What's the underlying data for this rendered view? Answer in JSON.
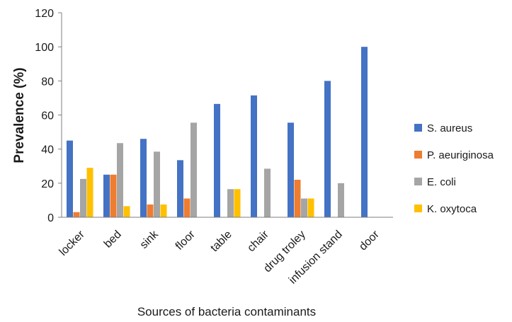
{
  "chart_data": {
    "type": "bar",
    "xlabel": "Sources of bacteria contaminants",
    "ylabel": "Prevalence (%)",
    "ylim": [
      0,
      120
    ],
    "yticks": [
      0,
      20,
      40,
      60,
      80,
      100,
      120
    ],
    "grid": false,
    "legend_position": "right",
    "categories": [
      "locker",
      "bed",
      "sink",
      "floor",
      "table",
      "chair",
      "drug troley",
      "infusion stand",
      "door"
    ],
    "series": [
      {
        "name": "S. aureus",
        "color": "#4472C4",
        "values": [
          45,
          25,
          46,
          33.5,
          66.5,
          71.5,
          55.5,
          80,
          100
        ]
      },
      {
        "name": "P. aeuriginosa",
        "color": "#ED7D31",
        "values": [
          3,
          25,
          7.5,
          11,
          0,
          0,
          22,
          0,
          0
        ]
      },
      {
        "name": "E. coli",
        "color": "#A5A5A5",
        "values": [
          22.5,
          43.5,
          38.5,
          55.5,
          16.5,
          28.5,
          11,
          20,
          0
        ]
      },
      {
        "name": "K. oxytoca",
        "color": "#FFC000",
        "values": [
          29,
          6.5,
          7.5,
          0,
          16.5,
          0,
          11,
          0,
          0
        ]
      }
    ]
  }
}
